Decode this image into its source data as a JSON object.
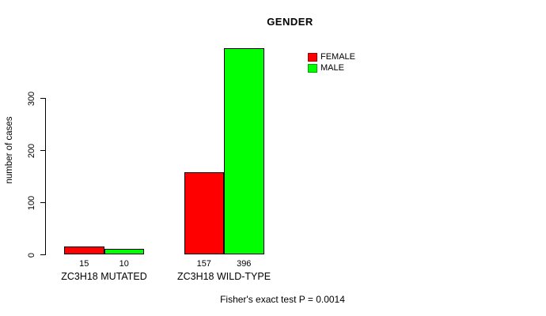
{
  "chart_data": {
    "type": "bar",
    "title": "GENDER",
    "xlabel": "",
    "ylabel": "number of cases",
    "categories": [
      "ZC3H18 MUTATED",
      "ZC3H18 WILD-TYPE"
    ],
    "series": [
      {
        "name": "FEMALE",
        "color": "#ff0000",
        "values": [
          15,
          157
        ]
      },
      {
        "name": "MALE",
        "color": "#00ff00",
        "values": [
          10,
          396
        ]
      }
    ],
    "bar_value_labels": [
      [
        "15",
        "157"
      ],
      [
        "10",
        "396"
      ]
    ],
    "y_ticks": [
      0,
      100,
      200,
      300
    ],
    "ylim": [
      0,
      300
    ],
    "grid": false,
    "legend_position": "top-right",
    "annotation": "Fisher's exact test P = 0.0014"
  }
}
